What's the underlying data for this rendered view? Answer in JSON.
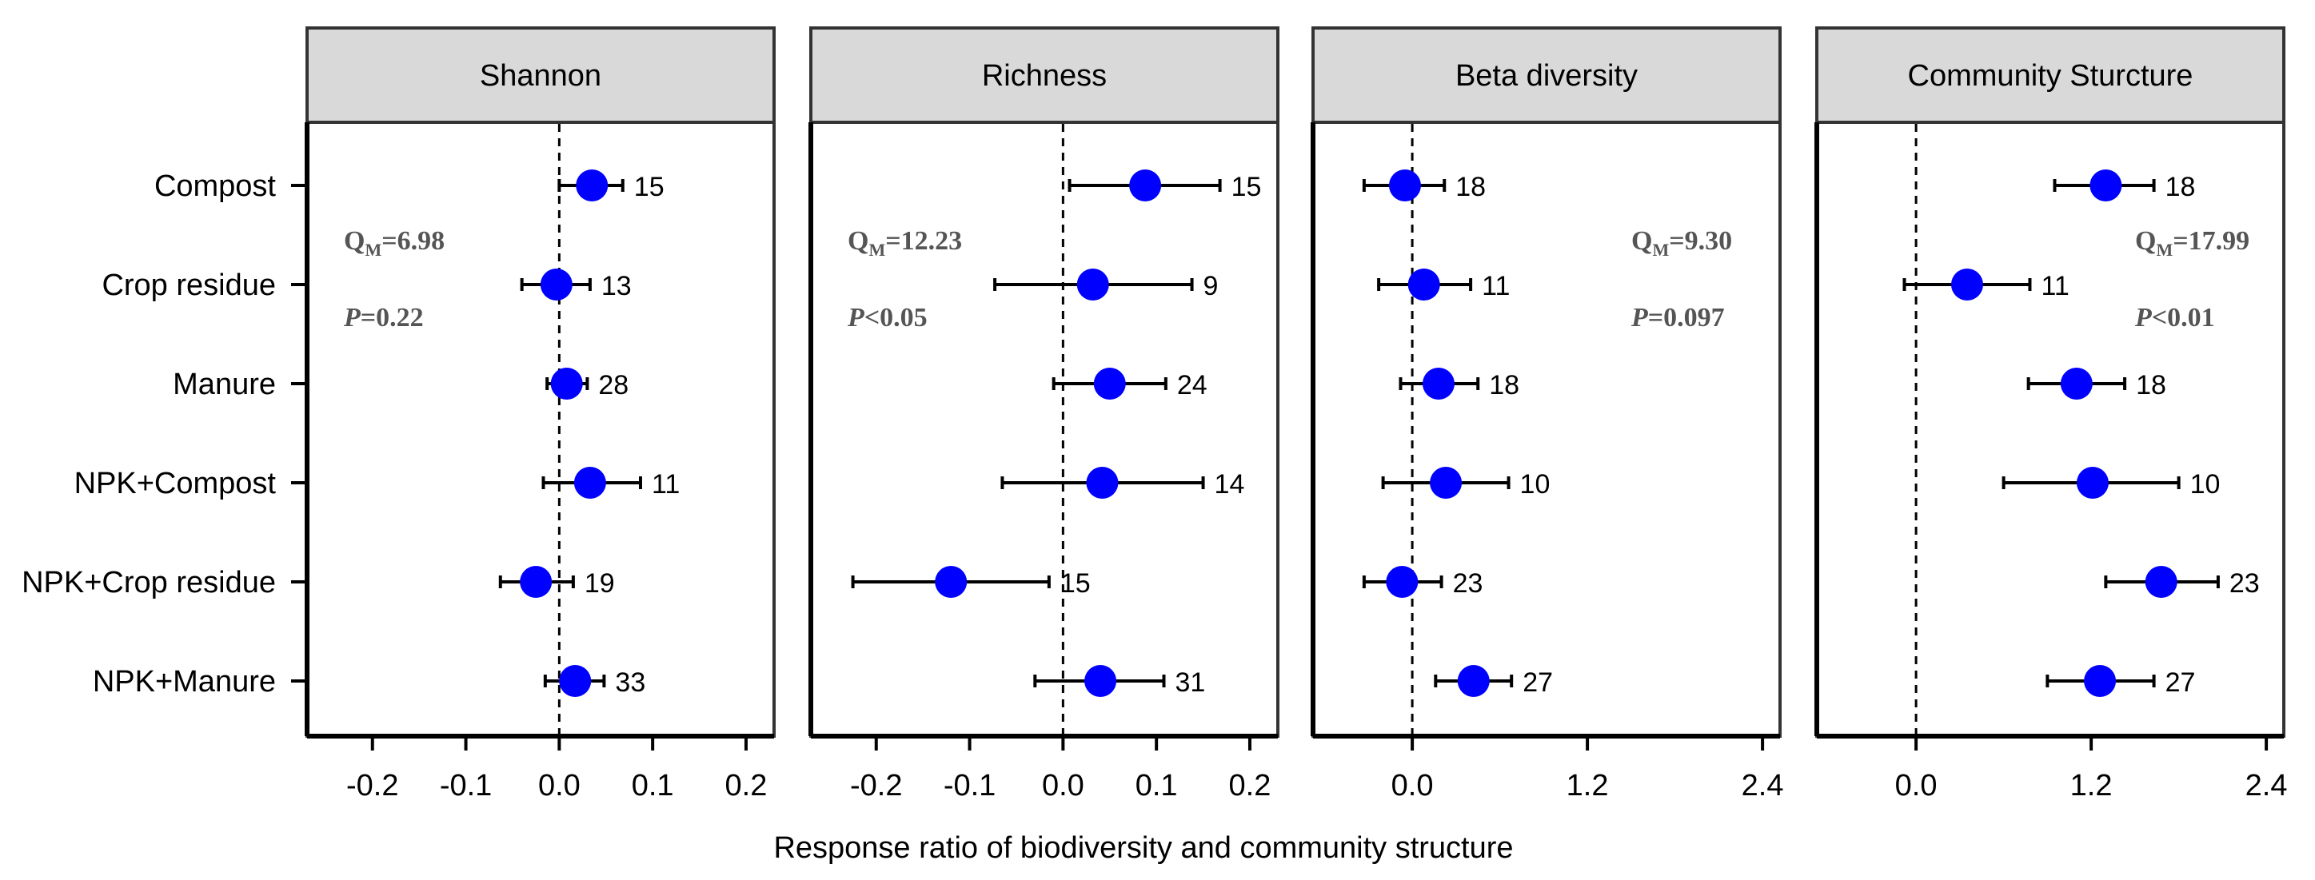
{
  "figure": {
    "xlabel": "Response ratio of biodiversity and community structure",
    "categories": [
      "Compost",
      "Crop residue",
      "Manure",
      "NPK+Compost",
      "NPK+Crop residue",
      "NPK+Manure"
    ]
  },
  "colors": {
    "point": "#0000ff",
    "strip_fill": "#d9d9d9",
    "frame": "#333333",
    "errorbar": "#000000"
  },
  "chart_data": [
    {
      "type": "scatter",
      "title": "Shannon",
      "xlim": [
        -0.27,
        0.23
      ],
      "xticks": [
        -0.2,
        -0.1,
        0.0,
        0.1,
        0.2
      ],
      "xtick_labels": [
        "-0.2",
        "-0.1",
        "0.0",
        "0.1",
        "0.2"
      ],
      "reference_line": 0,
      "stats": {
        "qm_label": "Q",
        "qm_sub": "M",
        "qm_value": "=6.98",
        "p_label": "P",
        "p_value": "=0.22",
        "position": "top-left"
      },
      "points": [
        {
          "category": "Compost",
          "mean": 0.035,
          "lo": 0.0,
          "hi": 0.068,
          "n": "15"
        },
        {
          "category": "Crop residue",
          "mean": -0.003,
          "lo": -0.04,
          "hi": 0.033,
          "n": "13"
        },
        {
          "category": "Manure",
          "mean": 0.008,
          "lo": -0.013,
          "hi": 0.03,
          "n": "28"
        },
        {
          "category": "NPK+Compost",
          "mean": 0.033,
          "lo": -0.017,
          "hi": 0.087,
          "n": "11"
        },
        {
          "category": "NPK+Crop residue",
          "mean": -0.025,
          "lo": -0.063,
          "hi": 0.015,
          "n": "19"
        },
        {
          "category": "NPK+Manure",
          "mean": 0.017,
          "lo": -0.015,
          "hi": 0.048,
          "n": "33"
        }
      ]
    },
    {
      "type": "scatter",
      "title": "Richness",
      "xlim": [
        -0.27,
        0.23
      ],
      "xticks": [
        -0.2,
        -0.1,
        0.0,
        0.1,
        0.2
      ],
      "xtick_labels": [
        "-0.2",
        "-0.1",
        "0.0",
        "0.1",
        "0.2"
      ],
      "reference_line": 0,
      "stats": {
        "qm_label": "Q",
        "qm_sub": "M",
        "qm_value": "=12.23",
        "p_label": "P",
        "p_value": "<0.05",
        "position": "top-left"
      },
      "points": [
        {
          "category": "Compost",
          "mean": 0.088,
          "lo": 0.007,
          "hi": 0.168,
          "n": "15"
        },
        {
          "category": "Crop residue",
          "mean": 0.032,
          "lo": -0.073,
          "hi": 0.138,
          "n": "9"
        },
        {
          "category": "Manure",
          "mean": 0.05,
          "lo": -0.01,
          "hi": 0.11,
          "n": "24"
        },
        {
          "category": "NPK+Compost",
          "mean": 0.042,
          "lo": -0.065,
          "hi": 0.15,
          "n": "14"
        },
        {
          "category": "NPK+Crop residue",
          "mean": -0.12,
          "lo": -0.225,
          "hi": -0.015,
          "n": "15"
        },
        {
          "category": "NPK+Manure",
          "mean": 0.04,
          "lo": -0.03,
          "hi": 0.108,
          "n": "31"
        }
      ]
    },
    {
      "type": "scatter",
      "title": "Beta diversity",
      "xlim": [
        -0.68,
        2.52
      ],
      "xticks": [
        0.0,
        1.2,
        2.4
      ],
      "xtick_labels": [
        "0.0",
        "1.2",
        "2.4"
      ],
      "reference_line": 0,
      "stats": {
        "qm_label": "Q",
        "qm_sub": "M",
        "qm_value": "=9.30",
        "p_label": "P",
        "p_value": "=0.097",
        "position": "top-right"
      },
      "points": [
        {
          "category": "Compost",
          "mean": -0.05,
          "lo": -0.33,
          "hi": 0.22,
          "n": "18"
        },
        {
          "category": "Crop residue",
          "mean": 0.08,
          "lo": -0.23,
          "hi": 0.4,
          "n": "11"
        },
        {
          "category": "Manure",
          "mean": 0.18,
          "lo": -0.08,
          "hi": 0.45,
          "n": "18"
        },
        {
          "category": "NPK+Compost",
          "mean": 0.23,
          "lo": -0.2,
          "hi": 0.66,
          "n": "10"
        },
        {
          "category": "NPK+Crop residue",
          "mean": -0.07,
          "lo": -0.33,
          "hi": 0.2,
          "n": "23"
        },
        {
          "category": "NPK+Manure",
          "mean": 0.42,
          "lo": 0.16,
          "hi": 0.68,
          "n": "27"
        }
      ]
    },
    {
      "type": "scatter",
      "title": "Community Sturcture",
      "xlim": [
        -0.68,
        2.52
      ],
      "xticks": [
        0.0,
        1.2,
        2.4
      ],
      "xtick_labels": [
        "0.0",
        "1.2",
        "2.4"
      ],
      "reference_line": 0,
      "stats": {
        "qm_label": "Q",
        "qm_sub": "M",
        "qm_value": "=17.99",
        "p_label": "P",
        "p_value": "<0.01",
        "position": "top-right"
      },
      "points": [
        {
          "category": "Compost",
          "mean": 1.3,
          "lo": 0.95,
          "hi": 1.63,
          "n": "18"
        },
        {
          "category": "Crop residue",
          "mean": 0.35,
          "lo": -0.08,
          "hi": 0.78,
          "n": "11"
        },
        {
          "category": "Manure",
          "mean": 1.1,
          "lo": 0.77,
          "hi": 1.43,
          "n": "18"
        },
        {
          "category": "NPK+Compost",
          "mean": 1.21,
          "lo": 0.6,
          "hi": 1.8,
          "n": "10"
        },
        {
          "category": "NPK+Crop residue",
          "mean": 1.68,
          "lo": 1.3,
          "hi": 2.07,
          "n": "23"
        },
        {
          "category": "NPK+Manure",
          "mean": 1.26,
          "lo": 0.9,
          "hi": 1.63,
          "n": "27"
        }
      ]
    }
  ]
}
